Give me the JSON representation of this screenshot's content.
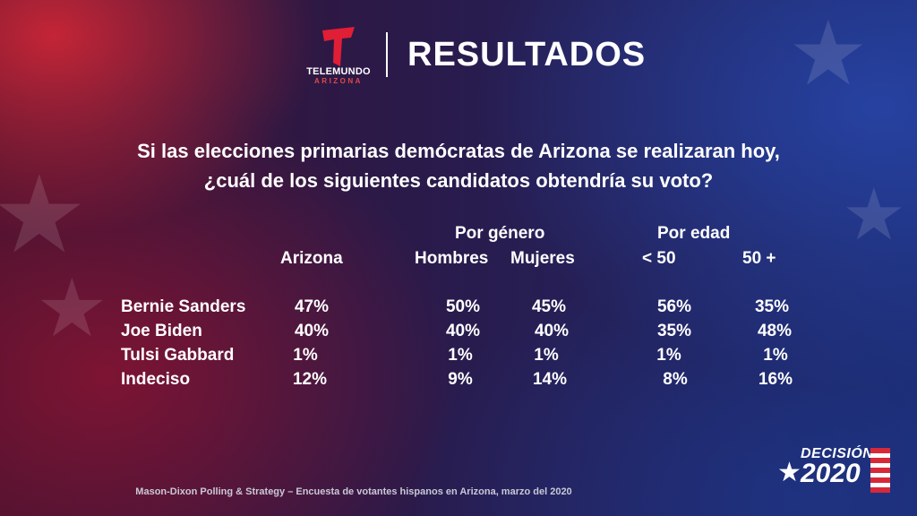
{
  "header": {
    "logo_word": "TELEMUNDO",
    "logo_sub": "ARIZONA",
    "title": "RESULTADOS"
  },
  "question": {
    "line1": "Si las elecciones primarias demócratas de Arizona se realizaran hoy,",
    "line2": "¿cuál de los siguientes candidatos obtendría su voto?"
  },
  "table": {
    "group_headers": {
      "gender": "Por género",
      "age": "Por edad"
    },
    "columns": [
      "Arizona",
      "Hombres",
      "Mujeres",
      "< 50",
      "50 +"
    ],
    "rows": [
      {
        "label": "Bernie Sanders",
        "values": [
          "47%",
          "50%",
          "45%",
          "56%",
          "35%"
        ]
      },
      {
        "label": "Joe Biden",
        "values": [
          "40%",
          "40%",
          "40%",
          "35%",
          "48%"
        ]
      },
      {
        "label": "Tulsi Gabbard",
        "values": [
          "1%",
          "1%",
          "1%",
          "1%",
          "1%"
        ]
      },
      {
        "label": "Indeciso",
        "values": [
          "12%",
          "9%",
          "14%",
          "8%",
          "16%"
        ]
      }
    ]
  },
  "footer": {
    "source": "Mason-Dixon  Polling & Strategy – Encuesta de votantes hispanos en Arizona, marzo del 2020"
  },
  "badge": {
    "word": "DECISIÓN",
    "year": "2020"
  },
  "colors": {
    "brand_red": "#d7283a",
    "background_blue": "#1c2a6e",
    "background_red": "#3a1230"
  }
}
